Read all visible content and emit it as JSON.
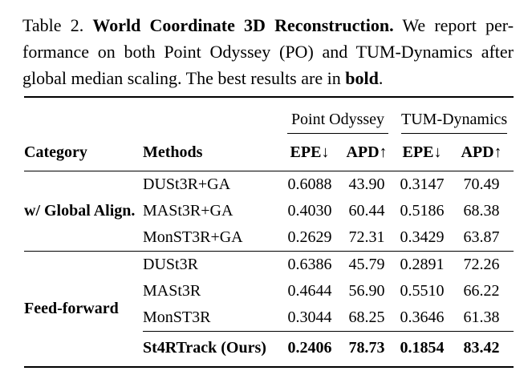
{
  "caption": {
    "label": "Table 2.",
    "title": "World Coordinate 3D Reconstruction.",
    "line1_rest": "We report per-",
    "line2": "formance on both Point Odyssey (PO) and TUM-Dynamics after",
    "line3_start": "global median scaling. The best results are in",
    "line3_bold": "bold",
    "line3_end": "."
  },
  "table": {
    "column_groups": [
      {
        "label": "Point Odyssey"
      },
      {
        "label": "TUM-Dynamics"
      }
    ],
    "col_headers": [
      "Category",
      "Methods",
      "EPE↓",
      "APD↑",
      "EPE↓",
      "APD↑"
    ],
    "groups": [
      {
        "category": "w/ Global Align.",
        "rows": [
          {
            "method": "DUSt3R+GA",
            "values": [
              "0.6088",
              "43.90",
              "0.3147",
              "70.49"
            ]
          },
          {
            "method": "MASt3R+GA",
            "values": [
              "0.4030",
              "60.44",
              "0.5186",
              "68.38"
            ]
          },
          {
            "method": "MonST3R+GA",
            "values": [
              "0.2629",
              "72.31",
              "0.3429",
              "63.87"
            ]
          }
        ]
      },
      {
        "category": "Feed-forward",
        "rows": [
          {
            "method": "DUSt3R",
            "values": [
              "0.6386",
              "45.79",
              "0.2891",
              "72.26"
            ]
          },
          {
            "method": "MASt3R",
            "values": [
              "0.4644",
              "56.90",
              "0.5510",
              "66.22"
            ]
          },
          {
            "method": "MonST3R",
            "values": [
              "0.3044",
              "68.25",
              "0.3646",
              "61.38"
            ]
          }
        ]
      }
    ],
    "ours": {
      "method": "St4RTrack (Ours)",
      "values": [
        "0.2406",
        "78.73",
        "0.1854",
        "83.42"
      ]
    }
  },
  "colors": {
    "text": "#000000",
    "background": "#ffffff",
    "rule": "#000000"
  }
}
